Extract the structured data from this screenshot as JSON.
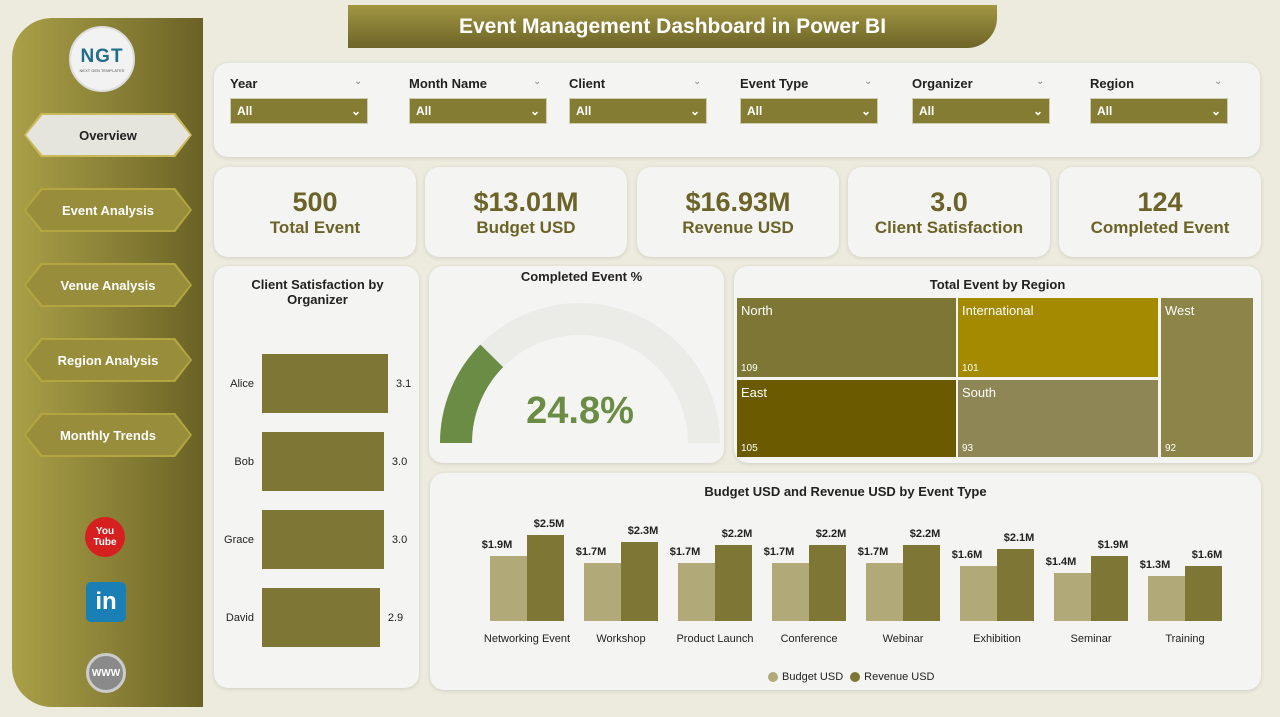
{
  "title": "Event Management Dashboard in Power BI",
  "logo": {
    "text": "NGT",
    "sub": "NEXT GEN TEMPLATES"
  },
  "nav": [
    {
      "label": "Overview",
      "active": true
    },
    {
      "label": "Event Analysis"
    },
    {
      "label": "Venue Analysis"
    },
    {
      "label": "Region Analysis"
    },
    {
      "label": "Monthly Trends"
    }
  ],
  "social": {
    "youtube": "You Tube",
    "linkedin": "in",
    "web": "WWW"
  },
  "filters": [
    {
      "label": "Year",
      "value": "All"
    },
    {
      "label": "Month Name",
      "value": "All"
    },
    {
      "label": "Client",
      "value": "All"
    },
    {
      "label": "Event Type",
      "value": "All"
    },
    {
      "label": "Organizer",
      "value": "All"
    },
    {
      "label": "Region",
      "value": "All"
    }
  ],
  "kpis": [
    {
      "value": "500",
      "label": "Total Event"
    },
    {
      "value": "$13.01M",
      "label": "Budget USD"
    },
    {
      "value": "$16.93M",
      "label": "Revenue USD"
    },
    {
      "value": "3.0",
      "label": "Client Satisfaction"
    },
    {
      "value": "124",
      "label": "Completed Event"
    }
  ],
  "chart_data": [
    {
      "type": "bar",
      "orientation": "horizontal",
      "title": "Client Satisfaction by Organizer",
      "categories": [
        "Alice",
        "Bob",
        "Grace",
        "David"
      ],
      "values": [
        3.1,
        3.0,
        3.0,
        2.9
      ],
      "labels": [
        "3.1",
        "3.0",
        "3.0",
        "2.9"
      ],
      "color": "#7e7634"
    },
    {
      "type": "gauge",
      "title": "Completed Event %",
      "value": 24.8,
      "label": "24.8%",
      "color": "#6a8c45"
    },
    {
      "type": "treemap",
      "title": "Total Event by Region",
      "categories": [
        "North",
        "International",
        "West",
        "East",
        "South"
      ],
      "values": [
        109,
        101,
        92,
        105,
        93
      ],
      "colors": [
        "#7e7634",
        "#a38a00",
        "#8d8447",
        "#6b5a00",
        "#8e8655"
      ]
    },
    {
      "type": "bar",
      "title": "Budget USD and Revenue USD by Event Type",
      "categories": [
        "Networking Event",
        "Workshop",
        "Product Launch",
        "Conference",
        "Webinar",
        "Exhibition",
        "Seminar",
        "Training"
      ],
      "series": [
        {
          "name": "Budget USD",
          "values": [
            1.9,
            1.7,
            1.7,
            1.7,
            1.7,
            1.6,
            1.4,
            1.3
          ],
          "labels": [
            "$1.9M",
            "$1.7M",
            "$1.7M",
            "$1.7M",
            "$1.7M",
            "$1.6M",
            "$1.4M",
            "$1.3M"
          ],
          "color": "#b1aa78"
        },
        {
          "name": "Revenue USD",
          "values": [
            2.5,
            2.3,
            2.2,
            2.2,
            2.2,
            2.1,
            1.9,
            1.6
          ],
          "labels": [
            "$2.5M",
            "$2.3M",
            "$2.2M",
            "$2.2M",
            "$2.2M",
            "$2.1M",
            "$1.9M",
            "$1.6M"
          ],
          "color": "#7e7634"
        }
      ],
      "legend": "bottom",
      "grid": false
    }
  ]
}
